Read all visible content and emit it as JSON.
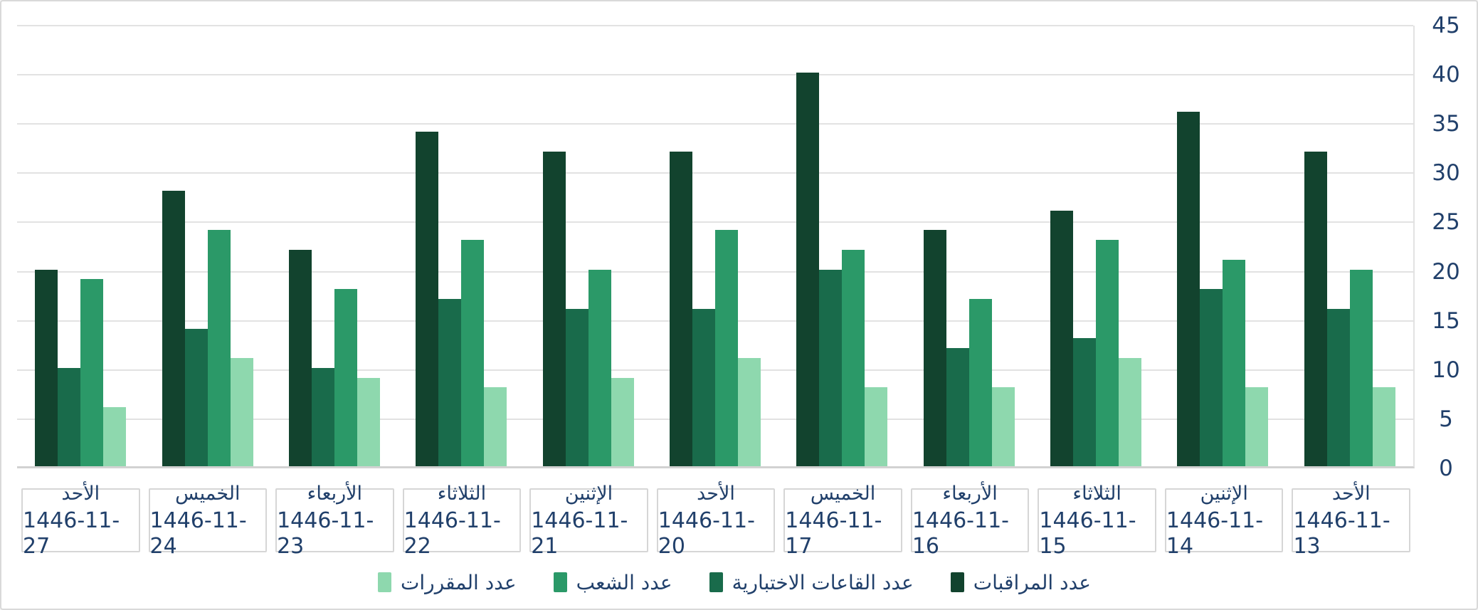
{
  "chart_data": {
    "type": "bar",
    "direction": "rtl",
    "title": "",
    "xlabel": "",
    "ylabel": "",
    "grid": true,
    "legend_position": "bottom-center",
    "y_axis": {
      "min": 0,
      "max": 45,
      "step": 5,
      "position": "right",
      "tick_labels": [
        "0",
        "5",
        "10",
        "15",
        "20",
        "25",
        "30",
        "35",
        "40",
        "45"
      ]
    },
    "categories": [
      {
        "day": "الأحد",
        "date": "1446-11-27"
      },
      {
        "day": "الخميس",
        "date": "1446-11-24"
      },
      {
        "day": "الأربعاء",
        "date": "1446-11-23"
      },
      {
        "day": "الثلاثاء",
        "date": "1446-11-22"
      },
      {
        "day": "الإثنين",
        "date": "1446-11-21"
      },
      {
        "day": "الأحد",
        "date": "1446-11-20"
      },
      {
        "day": "الخميس",
        "date": "1446-11-17"
      },
      {
        "day": "الأربعاء",
        "date": "1446-11-16"
      },
      {
        "day": "الثلاثاء",
        "date": "1446-11-15"
      },
      {
        "day": "الإثنين",
        "date": "1446-11-14"
      },
      {
        "day": "الأحد",
        "date": "1446-11-13"
      }
    ],
    "series": [
      {
        "name": "عدد المراقبات",
        "color": "#12432e",
        "values": [
          20,
          28,
          22,
          34,
          32,
          32,
          40,
          24,
          26,
          36,
          32
        ]
      },
      {
        "name": "عدد القاعات الاختبارية",
        "color": "#196b4b",
        "values": [
          10,
          14,
          10,
          17,
          16,
          16,
          20,
          12,
          13,
          18,
          16
        ]
      },
      {
        "name": "عدد الشعب",
        "color": "#2b9968",
        "values": [
          19,
          24,
          18,
          23,
          20,
          24,
          22,
          17,
          23,
          21,
          20
        ]
      },
      {
        "name": "عدد المقررات",
        "color": "#8ed8ae",
        "values": [
          6,
          11,
          9,
          8,
          9,
          11,
          8,
          8,
          11,
          8,
          8
        ]
      }
    ]
  },
  "colors": {
    "text": "#21406b",
    "gridline": "#e2e2e2",
    "axis_line": "#d2d2d2",
    "card_border": "#d9d9d9",
    "box_border": "#d6d6d6",
    "background": "#ffffff"
  }
}
